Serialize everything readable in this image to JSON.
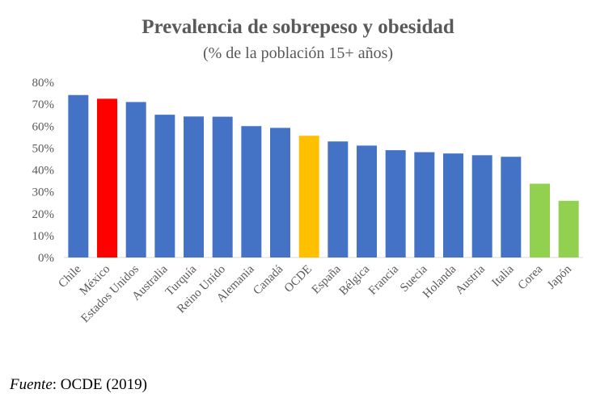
{
  "chart_data": {
    "type": "bar",
    "title": "Prevalencia de sobrepeso y obesidad",
    "subtitle": "(% de la población 15+ años)",
    "categories": [
      "Chile",
      "México",
      "Estados Unidos",
      "Australia",
      "Turquía",
      "Reino Unido",
      "Alemania",
      "Canadá",
      "OCDE",
      "España",
      "Bélgica",
      "Francia",
      "Suecia",
      "Holanda",
      "Austria",
      "Italia",
      "Corea",
      "Japón"
    ],
    "values": [
      74.2,
      72.5,
      71.0,
      65.2,
      64.4,
      64.3,
      60.0,
      59.2,
      55.6,
      53.0,
      51.1,
      49.0,
      48.1,
      47.5,
      46.7,
      46.0,
      33.7,
      25.9
    ],
    "colors": [
      "#4472C4",
      "#FF0000",
      "#4472C4",
      "#4472C4",
      "#4472C4",
      "#4472C4",
      "#4472C4",
      "#4472C4",
      "#FFC000",
      "#4472C4",
      "#4472C4",
      "#4472C4",
      "#4472C4",
      "#4472C4",
      "#4472C4",
      "#4472C4",
      "#92D050",
      "#92D050"
    ],
    "ylim": [
      0,
      80
    ],
    "yticks": [
      0,
      10,
      20,
      30,
      40,
      50,
      60,
      70,
      80
    ],
    "ytick_labels": [
      "0%",
      "10%",
      "20%",
      "30%",
      "40%",
      "50%",
      "60%",
      "70%",
      "80%"
    ],
    "grid": false,
    "xlabel": "",
    "ylabel": ""
  },
  "source": {
    "label": "Fuente",
    "text": ": OCDE (2019)"
  }
}
